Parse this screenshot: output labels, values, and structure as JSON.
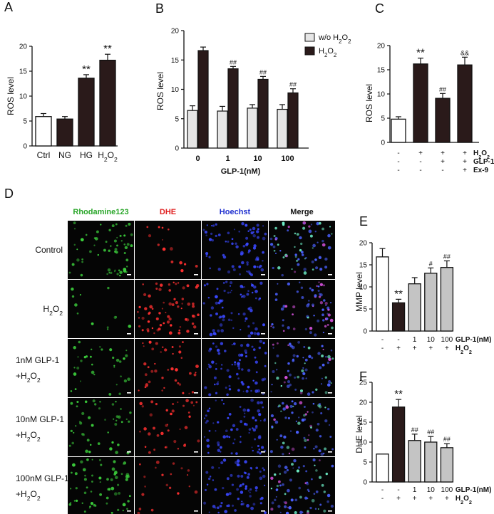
{
  "figure": {
    "panel_letters": [
      "A",
      "B",
      "C",
      "D",
      "E",
      "F"
    ]
  },
  "chart_data": [
    {
      "panel": "A",
      "type": "bar",
      "categories": [
        "Ctrl",
        "NG",
        "HG",
        "H2O2"
      ],
      "values": [
        5.9,
        5.4,
        13.6,
        17.2
      ],
      "errors": [
        0.6,
        0.5,
        0.7,
        1.2
      ],
      "annotations": [
        "",
        "",
        "**",
        "**"
      ],
      "fills": [
        "#ffffff",
        "#2a1a1a",
        "#2a1a1a",
        "#2a1a1a"
      ],
      "ylabel": "ROS level",
      "ylim": [
        0,
        20
      ],
      "yticks": [
        0,
        5,
        10,
        15,
        20
      ]
    },
    {
      "panel": "B",
      "type": "bar",
      "categories": [
        "0",
        "1",
        "10",
        "100"
      ],
      "series": [
        {
          "name": "w/o H2O2",
          "values": [
            6.4,
            6.3,
            6.8,
            6.6
          ],
          "errors": [
            0.8,
            0.8,
            0.6,
            0.8
          ],
          "color": "#e6e6e6"
        },
        {
          "name": "H2O2",
          "values": [
            16.6,
            13.5,
            11.7,
            9.4
          ],
          "errors": [
            0.6,
            0.4,
            0.5,
            0.7
          ],
          "color": "#2a1a1a"
        }
      ],
      "annotations": [
        "",
        "##",
        "##",
        "##"
      ],
      "xlabel": "GLP-1(nM)",
      "ylabel": "ROS level",
      "ylim": [
        0,
        20
      ],
      "yticks": [
        0,
        5,
        10,
        15,
        20
      ],
      "legend": "top-right"
    },
    {
      "panel": "C",
      "type": "bar",
      "values": [
        4.8,
        16.2,
        9.1,
        16.0
      ],
      "errors": [
        0.5,
        1.2,
        1.0,
        1.6
      ],
      "annotations": [
        "",
        "**",
        "##",
        "&&"
      ],
      "fills": [
        "#ffffff",
        "#2a1a1a",
        "#2a1a1a",
        "#2a1a1a"
      ],
      "ylabel": "ROS level",
      "ylim": [
        0,
        20
      ],
      "yticks": [
        0,
        5,
        10,
        15,
        20
      ],
      "condition_rows": [
        {
          "label": "H2O2",
          "signs": [
            "-",
            "+",
            "+",
            "+"
          ]
        },
        {
          "label": "GLP-1",
          "signs": [
            "-",
            "-",
            "+",
            "+"
          ]
        },
        {
          "label": "Ex-9",
          "signs": [
            "-",
            "-",
            "-",
            "+"
          ]
        }
      ]
    },
    {
      "panel": "E",
      "type": "bar",
      "values": [
        16.8,
        6.4,
        10.7,
        13.1,
        14.4
      ],
      "errors": [
        1.9,
        0.8,
        1.4,
        1.2,
        1.5
      ],
      "annotations": [
        "",
        "**",
        "",
        "#",
        "##"
      ],
      "fills": [
        "#ffffff",
        "#2a1a1a",
        "#c4c4c4",
        "#c4c4c4",
        "#c4c4c4"
      ],
      "ylabel": "MMP level",
      "ylim": [
        0,
        20
      ],
      "yticks": [
        0,
        5,
        10,
        15,
        20
      ],
      "condition_rows": [
        {
          "label": "GLP-1(nM)",
          "signs": [
            "-",
            "-",
            "1",
            "10",
            "100"
          ]
        },
        {
          "label": "H2O2",
          "signs": [
            "-",
            "+",
            "+",
            "+",
            "+"
          ]
        }
      ]
    },
    {
      "panel": "F",
      "type": "bar",
      "values": [
        7.0,
        18.8,
        10.4,
        10.0,
        8.6
      ],
      "errors": [
        0,
        1.9,
        1.6,
        1.4,
        1.0
      ],
      "annotations": [
        "",
        "**",
        "##",
        "##",
        "##"
      ],
      "fills": [
        "#ffffff",
        "#2a1a1a",
        "#c4c4c4",
        "#c4c4c4",
        "#c4c4c4"
      ],
      "ylabel": "DHE level",
      "ylim": [
        0,
        25
      ],
      "yticks": [
        0,
        5,
        10,
        15,
        20,
        25
      ],
      "condition_rows": [
        {
          "label": "GLP-1(nM)",
          "signs": [
            "-",
            "-",
            "1",
            "10",
            "100"
          ]
        },
        {
          "label": "H2O2",
          "signs": [
            "-",
            "+",
            "+",
            "+",
            "+"
          ]
        }
      ]
    }
  ],
  "micrographs": {
    "columns": [
      {
        "label": "Rhodamine123",
        "color": "#2aa62a"
      },
      {
        "label": "DHE",
        "color": "#e02020"
      },
      {
        "label": "Hoechst",
        "color": "#2030d0"
      },
      {
        "label": "Merge",
        "color": "#111111"
      }
    ],
    "rows": [
      {
        "label_lines": [
          "Control"
        ]
      },
      {
        "label_lines": [
          "H2O2"
        ]
      },
      {
        "label_lines": [
          "1nM GLP-1",
          "+H2O2"
        ]
      },
      {
        "label_lines": [
          "10nM GLP-1",
          "+H2O2"
        ]
      },
      {
        "label_lines": [
          "100nM GLP-1",
          "+H2O2"
        ]
      }
    ],
    "intensity": [
      [
        0.75,
        0.12,
        1.0,
        0.9
      ],
      [
        0.08,
        0.9,
        0.95,
        0.85
      ],
      [
        0.4,
        0.5,
        0.95,
        0.9
      ],
      [
        0.55,
        0.45,
        0.95,
        0.9
      ],
      [
        0.8,
        0.2,
        1.0,
        0.95
      ]
    ]
  }
}
